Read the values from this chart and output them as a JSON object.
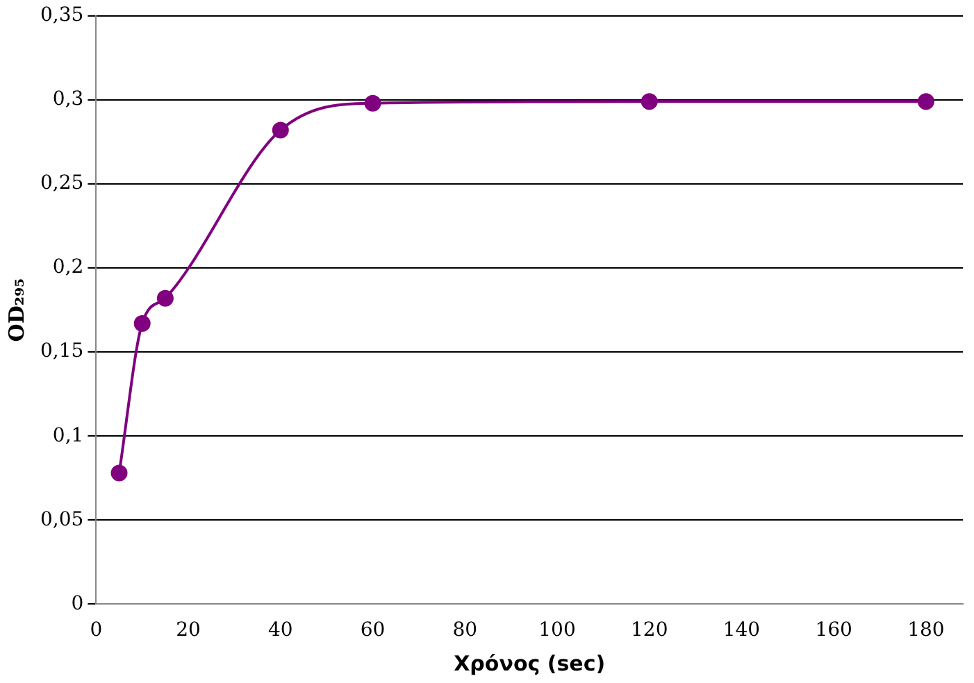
{
  "chart_data": {
    "type": "line",
    "xlabel": "Χρόνος (sec)",
    "ylabel": "OD₂₉₅",
    "x": [
      5,
      10,
      15,
      40,
      60,
      120,
      180
    ],
    "series": [
      {
        "color": "#800080",
        "values": [
          0.078,
          0.167,
          0.182,
          0.282,
          0.298,
          0.299,
          0.299
        ]
      }
    ],
    "xlim": [
      0,
      188
    ],
    "xticks": [
      0,
      20,
      40,
      60,
      80,
      100,
      120,
      140,
      160,
      180
    ],
    "ylim": [
      0,
      0.35
    ],
    "yticks": [
      {
        "value": 0,
        "label": "0"
      },
      {
        "value": 0.05,
        "label": "0,05"
      },
      {
        "value": 0.1,
        "label": "0,1"
      },
      {
        "value": 0.15,
        "label": "0,15"
      },
      {
        "value": 0.2,
        "label": "0,2"
      },
      {
        "value": 0.25,
        "label": "0,25"
      },
      {
        "value": 0.3,
        "label": "0,3"
      },
      {
        "value": 0.35,
        "label": "0,35"
      }
    ],
    "grid": "y",
    "legend": false,
    "marker": "circle",
    "line_style": "solid"
  }
}
